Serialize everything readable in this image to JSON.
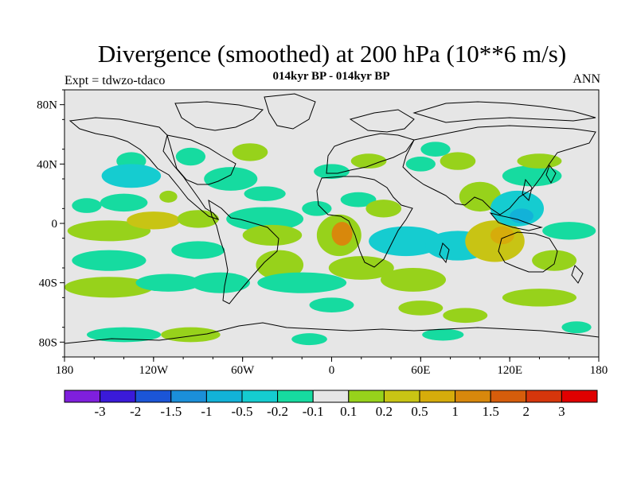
{
  "chart_data": {
    "type": "heatmap",
    "title": "Divergence (smoothed) at 200 hPa (10**6 m/s)",
    "subtitle": "014kyr BP - 014kyr BP",
    "left_label": "Expt = tdwzo-tdaco",
    "right_label": "ANN",
    "x_ticks": [
      "180",
      "120W",
      "60W",
      "0",
      "60E",
      "120E",
      "180"
    ],
    "x_tick_values": [
      -180,
      -120,
      -60,
      0,
      60,
      120,
      180
    ],
    "y_ticks": [
      "80N",
      "40N",
      "0",
      "40S",
      "80S"
    ],
    "y_tick_values": [
      80,
      40,
      0,
      -40,
      -80
    ],
    "xlim": [
      -180,
      180
    ],
    "ylim": [
      -90,
      90
    ],
    "colorbar": {
      "labels": [
        "-3",
        "-2",
        "-1.5",
        "-1",
        "-0.5",
        "-0.2",
        "-0.1",
        "0.1",
        "0.2",
        "0.5",
        "1",
        "1.5",
        "2",
        "3"
      ],
      "colors": [
        "#7f1fdd",
        "#3a1ad9",
        "#1b55d7",
        "#1b8fd9",
        "#12b2d8",
        "#15ccd0",
        "#16dba0",
        "#e6e6e6",
        "#97d21b",
        "#c8c414",
        "#d6ac0b",
        "#d8880c",
        "#d65d0b",
        "#d6360b",
        "#e00000"
      ]
    },
    "field_regions": [
      {
        "lon": -150,
        "lat": -5,
        "rx": 28,
        "ry": 7,
        "level": 1
      },
      {
        "lon": -120,
        "lat": 2,
        "rx": 18,
        "ry": 6,
        "level": 2
      },
      {
        "lon": -165,
        "lat": 12,
        "rx": 10,
        "ry": 5,
        "level": -1
      },
      {
        "lon": -140,
        "lat": 14,
        "rx": 16,
        "ry": 6,
        "level": -1
      },
      {
        "lon": -150,
        "lat": -25,
        "rx": 25,
        "ry": 7,
        "level": -1
      },
      {
        "lon": -150,
        "lat": -43,
        "rx": 30,
        "ry": 7,
        "level": 1
      },
      {
        "lon": -110,
        "lat": -40,
        "rx": 22,
        "ry": 6,
        "level": -1
      },
      {
        "lon": -135,
        "lat": 42,
        "rx": 10,
        "ry": 6,
        "level": -1
      },
      {
        "lon": -135,
        "lat": 32,
        "rx": 20,
        "ry": 8,
        "level": -2
      },
      {
        "lon": -110,
        "lat": 18,
        "rx": 6,
        "ry": 4,
        "level": 1
      },
      {
        "lon": -55,
        "lat": 48,
        "rx": 12,
        "ry": 6,
        "level": 1
      },
      {
        "lon": -68,
        "lat": 30,
        "rx": 18,
        "ry": 8,
        "level": -1
      },
      {
        "lon": -45,
        "lat": 20,
        "rx": 14,
        "ry": 5,
        "level": -1
      },
      {
        "lon": -90,
        "lat": 3,
        "rx": 14,
        "ry": 6,
        "level": 1
      },
      {
        "lon": -90,
        "lat": -18,
        "rx": 18,
        "ry": 6,
        "level": -1
      },
      {
        "lon": -45,
        "lat": 3,
        "rx": 26,
        "ry": 8,
        "level": -1
      },
      {
        "lon": -40,
        "lat": -8,
        "rx": 20,
        "ry": 7,
        "level": 1
      },
      {
        "lon": -35,
        "lat": -28,
        "rx": 16,
        "ry": 10,
        "level": 1
      },
      {
        "lon": -75,
        "lat": -40,
        "rx": 20,
        "ry": 7,
        "level": -1
      },
      {
        "lon": -20,
        "lat": -40,
        "rx": 30,
        "ry": 7,
        "level": -1
      },
      {
        "lon": 5,
        "lat": -8,
        "rx": 15,
        "ry": 14,
        "level": 1
      },
      {
        "lon": 7,
        "lat": -7,
        "rx": 7,
        "ry": 8,
        "level": 4
      },
      {
        "lon": -10,
        "lat": 10,
        "rx": 10,
        "ry": 5,
        "level": -1
      },
      {
        "lon": 18,
        "lat": 16,
        "rx": 12,
        "ry": 5,
        "level": -1
      },
      {
        "lon": 35,
        "lat": 10,
        "rx": 12,
        "ry": 6,
        "level": 1
      },
      {
        "lon": 50,
        "lat": -12,
        "rx": 25,
        "ry": 10,
        "level": -2
      },
      {
        "lon": 85,
        "lat": -15,
        "rx": 22,
        "ry": 10,
        "level": -2
      },
      {
        "lon": 20,
        "lat": -30,
        "rx": 22,
        "ry": 8,
        "level": 1
      },
      {
        "lon": 55,
        "lat": -38,
        "rx": 22,
        "ry": 8,
        "level": 1
      },
      {
        "lon": 0,
        "lat": -55,
        "rx": 15,
        "ry": 5,
        "level": -1
      },
      {
        "lon": 100,
        "lat": 18,
        "rx": 14,
        "ry": 10,
        "level": 1
      },
      {
        "lon": 110,
        "lat": -12,
        "rx": 20,
        "ry": 14,
        "level": 2
      },
      {
        "lon": 115,
        "lat": -8,
        "rx": 8,
        "ry": 6,
        "level": 3
      },
      {
        "lon": 125,
        "lat": 10,
        "rx": 18,
        "ry": 12,
        "level": -2
      },
      {
        "lon": 128,
        "lat": 5,
        "rx": 8,
        "ry": 5,
        "level": -3
      },
      {
        "lon": 160,
        "lat": -5,
        "rx": 18,
        "ry": 6,
        "level": -1
      },
      {
        "lon": 150,
        "lat": -25,
        "rx": 15,
        "ry": 7,
        "level": 1
      },
      {
        "lon": 135,
        "lat": 32,
        "rx": 20,
        "ry": 7,
        "level": -1
      },
      {
        "lon": 140,
        "lat": 42,
        "rx": 15,
        "ry": 5,
        "level": 1
      },
      {
        "lon": 85,
        "lat": 42,
        "rx": 12,
        "ry": 6,
        "level": 1
      },
      {
        "lon": 60,
        "lat": 40,
        "rx": 10,
        "ry": 5,
        "level": -1
      },
      {
        "lon": 25,
        "lat": 42,
        "rx": 12,
        "ry": 5,
        "level": 1
      },
      {
        "lon": 0,
        "lat": 35,
        "rx": 12,
        "ry": 5,
        "level": -1
      },
      {
        "lon": -95,
        "lat": 45,
        "rx": 10,
        "ry": 6,
        "level": -1
      },
      {
        "lon": 70,
        "lat": 50,
        "rx": 10,
        "ry": 5,
        "level": -1
      },
      {
        "lon": 140,
        "lat": -50,
        "rx": 25,
        "ry": 6,
        "level": 1
      },
      {
        "lon": 90,
        "lat": -62,
        "rx": 15,
        "ry": 5,
        "level": 1
      },
      {
        "lon": 60,
        "lat": -57,
        "rx": 15,
        "ry": 5,
        "level": 1
      },
      {
        "lon": -140,
        "lat": -75,
        "rx": 25,
        "ry": 5,
        "level": -1
      },
      {
        "lon": -95,
        "lat": -75,
        "rx": 20,
        "ry": 5,
        "level": 1
      },
      {
        "lon": -15,
        "lat": -78,
        "rx": 12,
        "ry": 4,
        "level": -1
      },
      {
        "lon": 75,
        "lat": -75,
        "rx": 14,
        "ry": 4,
        "level": -1
      },
      {
        "lon": 165,
        "lat": -70,
        "rx": 10,
        "ry": 4,
        "level": -1
      }
    ]
  }
}
